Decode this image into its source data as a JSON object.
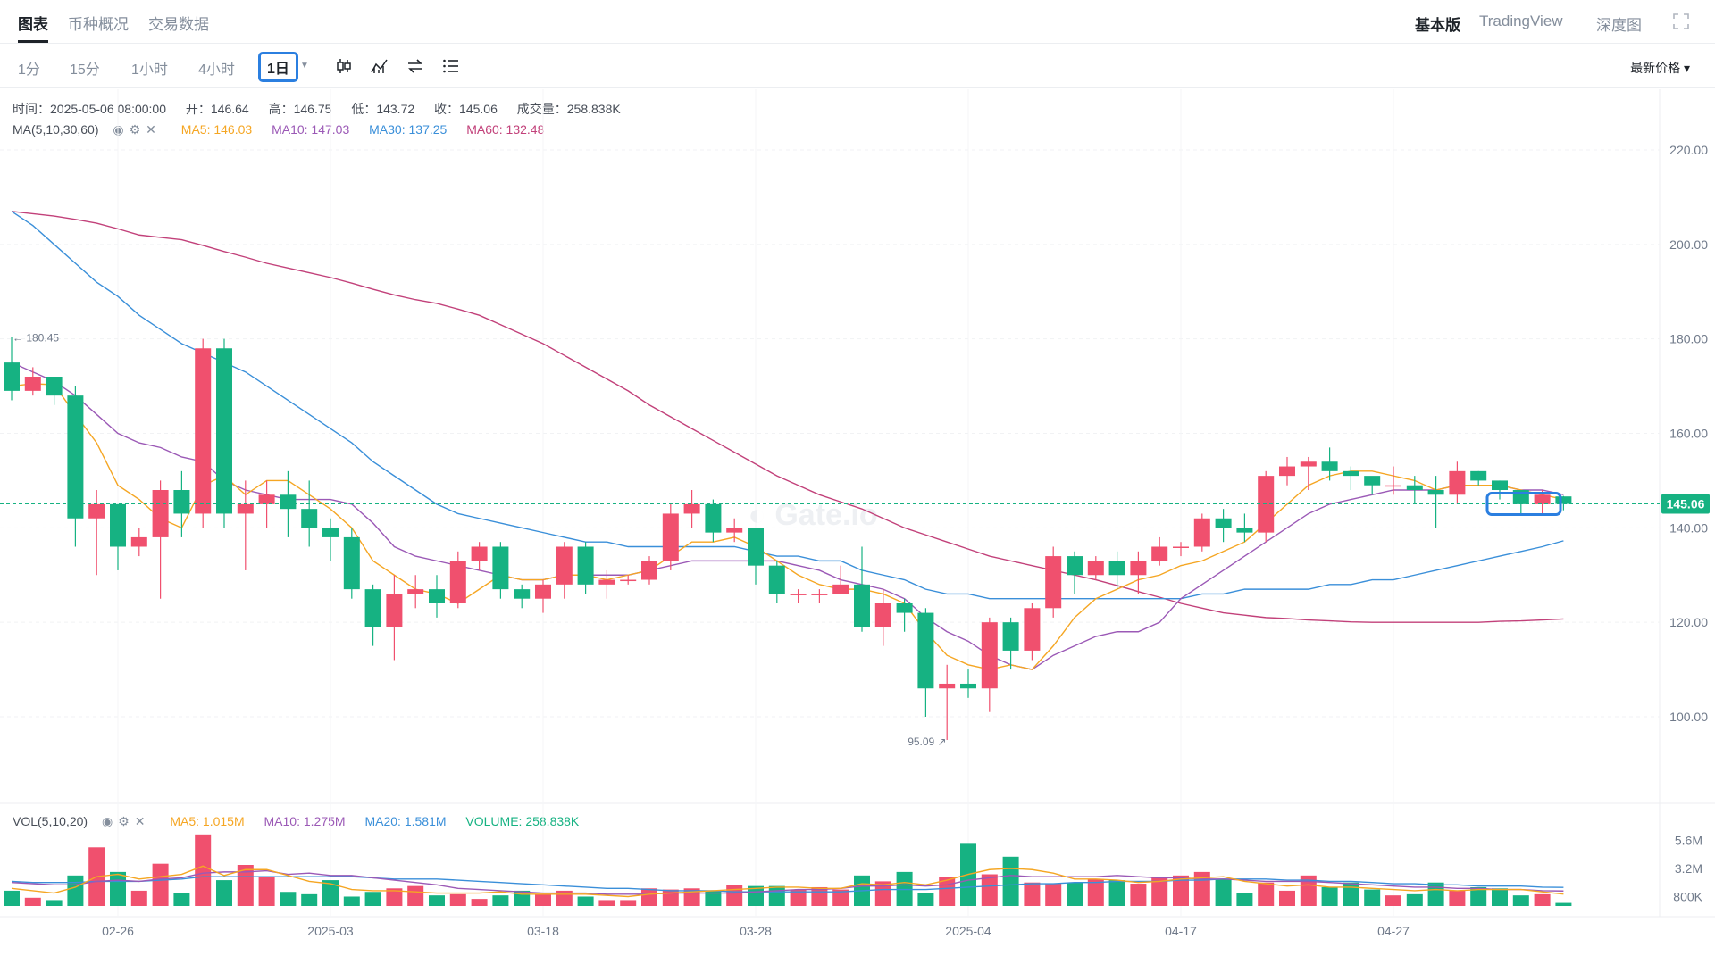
{
  "tabs": [
    {
      "label": "图表",
      "active": true
    },
    {
      "label": "币种概况",
      "active": false
    },
    {
      "label": "交易数据",
      "active": false
    }
  ],
  "views": [
    {
      "label": "基本版",
      "active": true
    },
    {
      "label": "TradingView",
      "active": false
    },
    {
      "label": "深度图",
      "active": false
    }
  ],
  "intervals": [
    {
      "label": "1分",
      "active": false
    },
    {
      "label": "15分",
      "active": false
    },
    {
      "label": "1小时",
      "active": false
    },
    {
      "label": "4小时",
      "active": false
    },
    {
      "label": "1日",
      "active": true
    }
  ],
  "toolbar_icons": [
    "candlestick-icon",
    "indicator-icon",
    "swap-icon",
    "list-icon"
  ],
  "price_type": "最新价格 ▾",
  "ohlc": {
    "time": "时间：2025-05-06 08:00:00",
    "open": "开：146.64",
    "high": "高：146.75",
    "low": "低：143.72",
    "close": "收：145.06",
    "volume": "成交量：258.838K"
  },
  "ma_legend": {
    "name": "MA(5,10,30,60)",
    "ma5": "MA5: 146.03",
    "ma10": "MA10: 147.03",
    "ma30": "MA30: 137.25",
    "ma60": "MA60: 132.48"
  },
  "vol_legend": {
    "name": "VOL(5,10,20)",
    "ma5": "MA5: 1.015M",
    "ma10": "MA10: 1.275M",
    "ma20": "MA20: 1.581M",
    "volume": "VOLUME: 258.838K"
  },
  "colors": {
    "up": "#f0506e",
    "down": "#16b282",
    "ma5": "#f5a623",
    "ma10": "#9b59b6",
    "ma30": "#3a8fd9",
    "ma60": "#c2417a",
    "highlight": "#2b7fe0"
  },
  "chart_data": {
    "type": "candlestick",
    "price_axis": {
      "ticks": [
        "220.00",
        "200.00",
        "180.00",
        "160.00",
        "140.00",
        "120.00",
        "100.00"
      ],
      "ylim": [
        88,
        228
      ]
    },
    "volume_axis": {
      "ticks": [
        "5.6M",
        "3.2M",
        "800K"
      ],
      "ylim": [
        0,
        7000000
      ]
    },
    "x_tick_labels": [
      {
        "index": 5,
        "label": "02-26"
      },
      {
        "index": 15,
        "label": "2025-03"
      },
      {
        "index": 25,
        "label": "03-18"
      },
      {
        "index": 35,
        "label": "03-28"
      },
      {
        "index": 45,
        "label": "2025-04"
      },
      {
        "index": 55,
        "label": "04-17"
      },
      {
        "index": 65,
        "label": "04-27"
      }
    ],
    "last_price": "145.06",
    "max_label": "180.45",
    "min_label": "95.09",
    "candles": [
      [
        175,
        169,
        180.45,
        167
      ],
      [
        169,
        172,
        174,
        168
      ],
      [
        172,
        168,
        172,
        166
      ],
      [
        168,
        142,
        170,
        136
      ],
      [
        142,
        145,
        148,
        130
      ],
      [
        145,
        136,
        145,
        131
      ],
      [
        136,
        138,
        140,
        134
      ],
      [
        138,
        148,
        150,
        125
      ],
      [
        148,
        143,
        152,
        138
      ],
      [
        143,
        178,
        180,
        140
      ],
      [
        178,
        143,
        180,
        140
      ],
      [
        143,
        145,
        150,
        131
      ],
      [
        145,
        147,
        150,
        140
      ],
      [
        147,
        144,
        152,
        138
      ],
      [
        144,
        140,
        150,
        136
      ],
      [
        140,
        138,
        142,
        133
      ],
      [
        138,
        127,
        140,
        125
      ],
      [
        127,
        119,
        128,
        115
      ],
      [
        119,
        126,
        130,
        112
      ],
      [
        126,
        127,
        130,
        123
      ],
      [
        127,
        124,
        130,
        121
      ],
      [
        124,
        133,
        135,
        123
      ],
      [
        133,
        136,
        137,
        131
      ],
      [
        136,
        127,
        137,
        125
      ],
      [
        127,
        125,
        128,
        123
      ],
      [
        125,
        128,
        129,
        122
      ],
      [
        128,
        136,
        137,
        125
      ],
      [
        136,
        128,
        137,
        126
      ],
      [
        128,
        129,
        131,
        125
      ],
      [
        129,
        129,
        130,
        128
      ],
      [
        129,
        133,
        134,
        128
      ],
      [
        133,
        143,
        145,
        131
      ],
      [
        143,
        145,
        148,
        140
      ],
      [
        145,
        139,
        146,
        137
      ],
      [
        139,
        140,
        142,
        137
      ],
      [
        140,
        132,
        140,
        128
      ],
      [
        132,
        126,
        133,
        124
      ],
      [
        126,
        126,
        127,
        124
      ],
      [
        126,
        126,
        127,
        124
      ],
      [
        126,
        128,
        132,
        126
      ],
      [
        128,
        119,
        136,
        118
      ],
      [
        119,
        124,
        127,
        115
      ],
      [
        124,
        122,
        125,
        118
      ],
      [
        122,
        106,
        123,
        100
      ],
      [
        106,
        107,
        111,
        95.09
      ],
      [
        107,
        106,
        110,
        104
      ],
      [
        106,
        120,
        121,
        101
      ],
      [
        120,
        114,
        121,
        110
      ],
      [
        114,
        123,
        124,
        112
      ],
      [
        123,
        134,
        136,
        121
      ],
      [
        134,
        130,
        135,
        126
      ],
      [
        130,
        133,
        134,
        129
      ],
      [
        133,
        130,
        135,
        127
      ],
      [
        130,
        133,
        135,
        126
      ],
      [
        133,
        136,
        138,
        132
      ],
      [
        136,
        136,
        137,
        134
      ],
      [
        136,
        142,
        143,
        135
      ],
      [
        142,
        140,
        144,
        137
      ],
      [
        140,
        139,
        143,
        137
      ],
      [
        139,
        151,
        152,
        137
      ],
      [
        151,
        153,
        155,
        149
      ],
      [
        153,
        154,
        155,
        148
      ],
      [
        154,
        152,
        157,
        150
      ],
      [
        152,
        151,
        153,
        148
      ],
      [
        151,
        149,
        150,
        147
      ],
      [
        149,
        149,
        153,
        147
      ],
      [
        149,
        148,
        151,
        145
      ],
      [
        148,
        147,
        151,
        140
      ],
      [
        147,
        152,
        154,
        145
      ],
      [
        152,
        150,
        152,
        149
      ],
      [
        150,
        148,
        150,
        146
      ],
      [
        148,
        145,
        148,
        143
      ],
      [
        145,
        147,
        148,
        143
      ],
      [
        146.64,
        145.06,
        146.75,
        143.72
      ]
    ],
    "ma5": [
      170,
      170.5,
      170.3,
      164,
      158,
      149,
      146,
      142,
      140,
      149,
      151,
      147,
      150,
      150,
      147,
      144,
      140,
      133,
      130,
      127,
      126,
      124,
      127,
      130,
      129,
      129,
      130,
      130,
      129,
      130,
      131,
      134,
      137,
      137,
      138,
      136,
      133,
      130,
      128,
      127,
      127,
      126,
      124,
      118,
      113,
      111,
      110,
      111,
      110,
      115,
      121,
      125,
      127,
      129,
      130,
      132,
      133,
      135,
      137,
      141,
      145,
      149,
      151,
      152,
      152,
      151,
      150,
      148,
      149,
      149,
      149,
      148,
      147,
      146.03
    ],
    "ma10": [
      175,
      173,
      171,
      168,
      164,
      160,
      158,
      157,
      155,
      154,
      150,
      148,
      147,
      146,
      146,
      146,
      145,
      141,
      136,
      134,
      133,
      132,
      131,
      130,
      129,
      129,
      130,
      130,
      130,
      130,
      131,
      132,
      133,
      133,
      133,
      133,
      133,
      132,
      131,
      129,
      128,
      127,
      125,
      121,
      118,
      116,
      113,
      111,
      110,
      113,
      115,
      117,
      118,
      118,
      120,
      125,
      128,
      131,
      134,
      137,
      140,
      143,
      145,
      146,
      147,
      148,
      148,
      148,
      149,
      149,
      149,
      148,
      148,
      147.03
    ],
    "ma30": [
      207,
      204,
      200,
      196,
      192,
      189,
      185,
      182,
      179,
      177,
      175,
      173,
      170,
      167,
      164,
      161,
      158,
      154,
      151,
      148,
      145,
      143,
      142,
      141,
      140,
      139,
      138,
      137,
      137,
      136,
      136,
      136,
      136,
      136,
      136,
      135,
      134,
      134,
      133,
      133,
      131,
      130,
      129,
      127,
      126,
      126,
      125,
      125,
      125,
      125,
      125,
      125,
      125,
      125,
      125,
      125,
      126,
      126,
      127,
      127,
      127,
      127,
      128,
      128,
      129,
      129,
      130,
      131,
      132,
      133,
      134,
      135,
      136,
      137.25
    ],
    "ma60": [
      207,
      206.5,
      206,
      205.3,
      204.5,
      203.3,
      202,
      201.5,
      201,
      199.8,
      198.5,
      197.3,
      196,
      195,
      194,
      193,
      191.8,
      190.5,
      189.3,
      188.3,
      187.5,
      186.3,
      185,
      183,
      181,
      179,
      176.5,
      174,
      171.5,
      169,
      166,
      163.5,
      161,
      158.5,
      156,
      153.5,
      151,
      149,
      147,
      145.5,
      144,
      142,
      140,
      138.5,
      137,
      135.5,
      134,
      133,
      132,
      131,
      130,
      129,
      127.8,
      126.5,
      125.3,
      124,
      123,
      122,
      121.5,
      121,
      120.8,
      120.5,
      120.3,
      120.1,
      120,
      120,
      120,
      120,
      120,
      120,
      120.2,
      120.3,
      120.5,
      132.48
    ],
    "volumes": [
      1.3,
      0.7,
      0.5,
      2.6,
      5.0,
      2.9,
      1.3,
      3.6,
      1.1,
      6.1,
      2.2,
      3.5,
      2.5,
      1.2,
      1.0,
      2.2,
      0.8,
      1.2,
      1.5,
      1.7,
      0.9,
      1.0,
      0.6,
      0.9,
      1.3,
      1.0,
      1.3,
      0.8,
      0.5,
      0.5,
      1.5,
      1.4,
      1.5,
      1.3,
      1.8,
      1.7,
      1.7,
      1.4,
      1.6,
      1.4,
      2.6,
      2.1,
      2.9,
      1.1,
      2.5,
      5.3,
      2.7,
      4.2,
      2.0,
      1.9,
      2.0,
      2.3,
      2.2,
      1.9,
      2.4,
      2.6,
      2.9,
      2.3,
      1.1,
      2.0,
      1.3,
      2.6,
      1.6,
      2.0,
      1.4,
      0.9,
      1.0,
      2.0,
      1.3,
      1.6,
      1.5,
      0.9,
      1.0,
      0.26
    ],
    "vol_ma5": [
      1.5,
      1.3,
      1.1,
      1.6,
      2.5,
      2.7,
      2.3,
      2.5,
      2.7,
      3.4,
      2.6,
      3.1,
      3.1,
      2.6,
      2.1,
      1.9,
      1.4,
      1.3,
      1.3,
      1.2,
      1.1,
      1.1,
      1.1,
      1.2,
      1.0,
      1.0,
      1.0,
      1.0,
      0.9,
      0.8,
      1.0,
      1.1,
      1.2,
      1.3,
      1.4,
      1.5,
      1.6,
      1.6,
      1.5,
      1.5,
      1.9,
      1.8,
      2.0,
      1.8,
      2.2,
      2.7,
      3.1,
      3.2,
      3.1,
      2.8,
      2.3,
      2.3,
      2.2,
      2.0,
      2.1,
      2.3,
      2.4,
      2.5,
      2.1,
      1.9,
      1.7,
      1.8,
      1.6,
      1.6,
      1.5,
      1.4,
      1.3,
      1.4,
      1.3,
      1.4,
      1.4,
      1.4,
      1.2,
      1.015
    ],
    "vol_ma10": [
      2.0,
      1.9,
      1.8,
      1.8,
      2.1,
      2.2,
      2.1,
      2.3,
      2.4,
      2.8,
      2.9,
      2.9,
      3.0,
      2.7,
      2.8,
      2.6,
      2.6,
      2.4,
      2.2,
      2.0,
      1.8,
      1.5,
      1.4,
      1.3,
      1.2,
      1.1,
      1.1,
      1.1,
      1.0,
      1.0,
      1.0,
      1.1,
      1.1,
      1.1,
      1.1,
      1.2,
      1.3,
      1.4,
      1.4,
      1.5,
      1.7,
      1.7,
      1.8,
      1.7,
      1.8,
      2.2,
      2.4,
      2.6,
      2.5,
      2.5,
      2.5,
      2.5,
      2.6,
      2.5,
      2.4,
      2.4,
      2.3,
      2.3,
      2.2,
      2.1,
      2.1,
      2.1,
      2.0,
      1.9,
      1.8,
      1.7,
      1.6,
      1.6,
      1.5,
      1.5,
      1.4,
      1.4,
      1.3,
      1.275
    ],
    "vol_ma20": [
      2.1,
      2.0,
      2.0,
      2.0,
      2.1,
      2.1,
      2.1,
      2.2,
      2.3,
      2.5,
      2.5,
      2.5,
      2.5,
      2.5,
      2.5,
      2.5,
      2.5,
      2.4,
      2.3,
      2.3,
      2.3,
      2.2,
      2.1,
      2.0,
      1.9,
      1.8,
      1.7,
      1.6,
      1.5,
      1.5,
      1.4,
      1.3,
      1.3,
      1.3,
      1.2,
      1.2,
      1.2,
      1.2,
      1.2,
      1.2,
      1.3,
      1.4,
      1.4,
      1.4,
      1.5,
      1.6,
      1.7,
      1.8,
      1.9,
      1.9,
      2.0,
      2.0,
      2.1,
      2.1,
      2.1,
      2.2,
      2.2,
      2.3,
      2.3,
      2.3,
      2.2,
      2.2,
      2.1,
      2.1,
      2.0,
      1.9,
      1.9,
      1.8,
      1.8,
      1.7,
      1.7,
      1.7,
      1.6,
      1.581
    ]
  }
}
